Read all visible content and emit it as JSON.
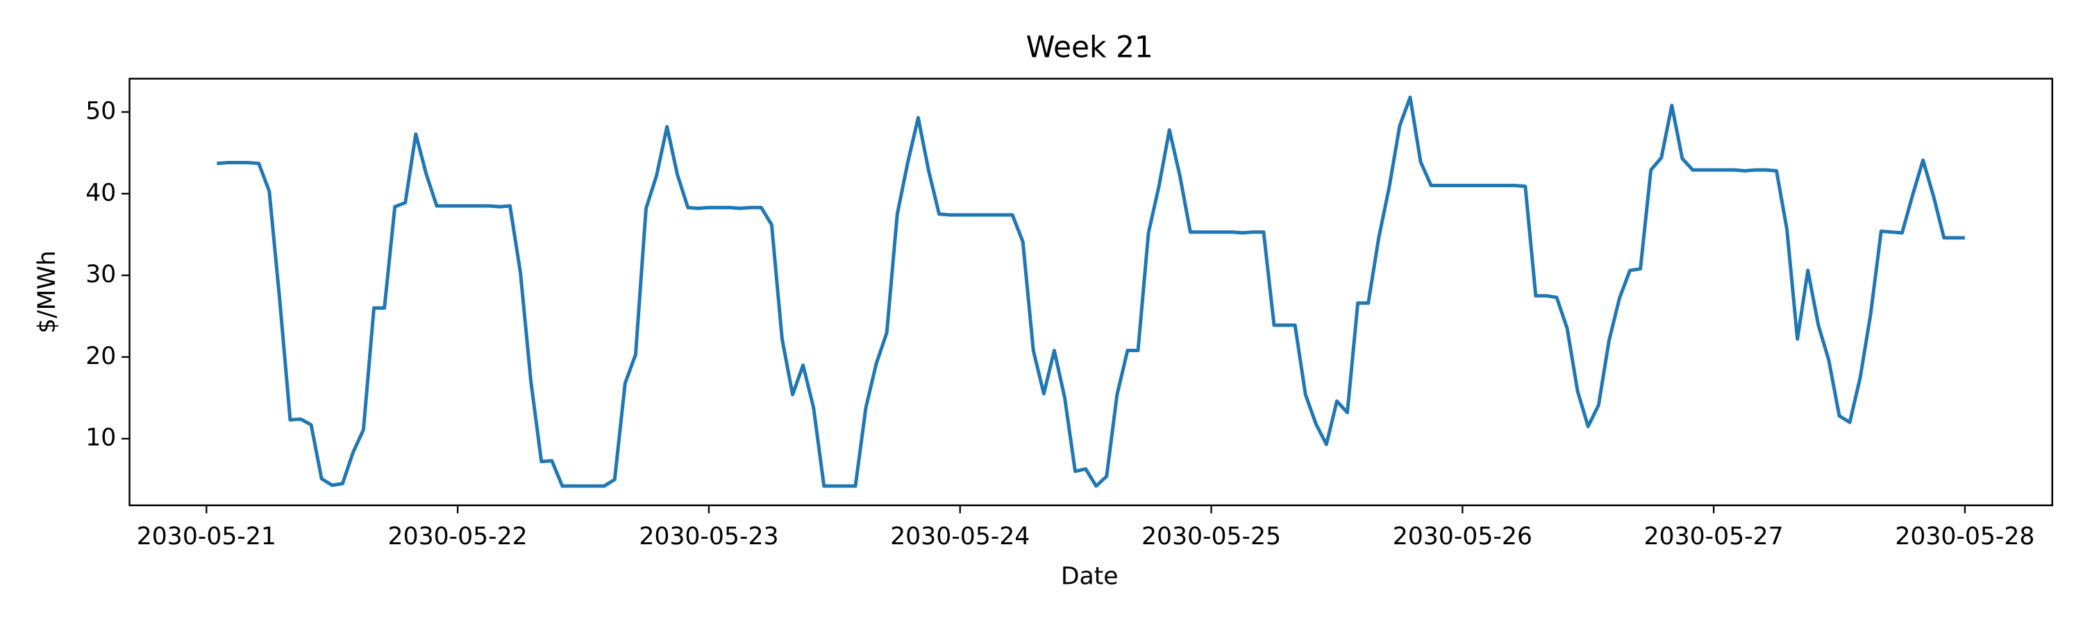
{
  "chart_data": {
    "type": "line",
    "title": "Week 21",
    "xlabel": "Date",
    "ylabel": "$/MWh",
    "x": [
      "2030-05-21T01:00",
      "2030-05-21T02:00",
      "2030-05-21T03:00",
      "2030-05-21T04:00",
      "2030-05-21T05:00",
      "2030-05-21T06:00",
      "2030-05-21T07:00",
      "2030-05-21T08:00",
      "2030-05-21T09:00",
      "2030-05-21T10:00",
      "2030-05-21T11:00",
      "2030-05-21T12:00",
      "2030-05-21T13:00",
      "2030-05-21T14:00",
      "2030-05-21T15:00",
      "2030-05-21T16:00",
      "2030-05-21T17:00",
      "2030-05-21T18:00",
      "2030-05-21T19:00",
      "2030-05-21T20:00",
      "2030-05-21T21:00",
      "2030-05-21T22:00",
      "2030-05-21T23:00",
      "2030-05-22T00:00",
      "2030-05-22T01:00",
      "2030-05-22T02:00",
      "2030-05-22T03:00",
      "2030-05-22T04:00",
      "2030-05-22T05:00",
      "2030-05-22T06:00",
      "2030-05-22T07:00",
      "2030-05-22T08:00",
      "2030-05-22T09:00",
      "2030-05-22T10:00",
      "2030-05-22T11:00",
      "2030-05-22T12:00",
      "2030-05-22T13:00",
      "2030-05-22T14:00",
      "2030-05-22T15:00",
      "2030-05-22T16:00",
      "2030-05-22T17:00",
      "2030-05-22T18:00",
      "2030-05-22T19:00",
      "2030-05-22T20:00",
      "2030-05-22T21:00",
      "2030-05-22T22:00",
      "2030-05-22T23:00",
      "2030-05-23T00:00",
      "2030-05-23T01:00",
      "2030-05-23T02:00",
      "2030-05-23T03:00",
      "2030-05-23T04:00",
      "2030-05-23T05:00",
      "2030-05-23T06:00",
      "2030-05-23T07:00",
      "2030-05-23T08:00",
      "2030-05-23T09:00",
      "2030-05-23T10:00",
      "2030-05-23T11:00",
      "2030-05-23T12:00",
      "2030-05-23T13:00",
      "2030-05-23T14:00",
      "2030-05-23T15:00",
      "2030-05-23T16:00",
      "2030-05-23T17:00",
      "2030-05-23T18:00",
      "2030-05-23T19:00",
      "2030-05-23T20:00",
      "2030-05-23T21:00",
      "2030-05-23T22:00",
      "2030-05-23T23:00",
      "2030-05-24T00:00",
      "2030-05-24T01:00",
      "2030-05-24T02:00",
      "2030-05-24T03:00",
      "2030-05-24T04:00",
      "2030-05-24T05:00",
      "2030-05-24T06:00",
      "2030-05-24T07:00",
      "2030-05-24T08:00",
      "2030-05-24T09:00",
      "2030-05-24T10:00",
      "2030-05-24T11:00",
      "2030-05-24T12:00",
      "2030-05-24T13:00",
      "2030-05-24T14:00",
      "2030-05-24T15:00",
      "2030-05-24T16:00",
      "2030-05-24T17:00",
      "2030-05-24T18:00",
      "2030-05-24T19:00",
      "2030-05-24T20:00",
      "2030-05-24T21:00",
      "2030-05-24T22:00",
      "2030-05-24T23:00",
      "2030-05-25T00:00",
      "2030-05-25T01:00",
      "2030-05-25T02:00",
      "2030-05-25T03:00",
      "2030-05-25T04:00",
      "2030-05-25T05:00",
      "2030-05-25T06:00",
      "2030-05-25T07:00",
      "2030-05-25T08:00",
      "2030-05-25T09:00",
      "2030-05-25T10:00",
      "2030-05-25T11:00",
      "2030-05-25T12:00",
      "2030-05-25T13:00",
      "2030-05-25T14:00",
      "2030-05-25T15:00",
      "2030-05-25T16:00",
      "2030-05-25T17:00",
      "2030-05-25T18:00",
      "2030-05-25T19:00",
      "2030-05-25T20:00",
      "2030-05-25T21:00",
      "2030-05-25T22:00",
      "2030-05-25T23:00",
      "2030-05-26T00:00",
      "2030-05-26T01:00",
      "2030-05-26T02:00",
      "2030-05-26T03:00",
      "2030-05-26T04:00",
      "2030-05-26T05:00",
      "2030-05-26T06:00",
      "2030-05-26T07:00",
      "2030-05-26T08:00",
      "2030-05-26T09:00",
      "2030-05-26T10:00",
      "2030-05-26T11:00",
      "2030-05-26T12:00",
      "2030-05-26T13:00",
      "2030-05-26T14:00",
      "2030-05-26T15:00",
      "2030-05-26T16:00",
      "2030-05-26T17:00",
      "2030-05-26T18:00",
      "2030-05-26T19:00",
      "2030-05-26T20:00",
      "2030-05-26T21:00",
      "2030-05-26T22:00",
      "2030-05-26T23:00",
      "2030-05-27T00:00",
      "2030-05-27T01:00",
      "2030-05-27T02:00",
      "2030-05-27T03:00",
      "2030-05-27T04:00",
      "2030-05-27T05:00",
      "2030-05-27T06:00",
      "2030-05-27T07:00",
      "2030-05-27T08:00",
      "2030-05-27T09:00",
      "2030-05-27T10:00",
      "2030-05-27T11:00",
      "2030-05-27T12:00",
      "2030-05-27T13:00",
      "2030-05-27T14:00",
      "2030-05-27T15:00",
      "2030-05-27T16:00",
      "2030-05-27T17:00",
      "2030-05-27T18:00",
      "2030-05-27T19:00",
      "2030-05-27T20:00",
      "2030-05-27T21:00",
      "2030-05-27T22:00",
      "2030-05-27T23:00",
      "2030-05-28T00:00"
    ],
    "series": [
      {
        "color": "#1f77b4",
        "values": [
          43.7,
          43.8,
          43.8,
          43.8,
          43.7,
          40.3,
          27,
          12.3,
          12.4,
          11.7,
          5.1,
          4.3,
          4.5,
          8.3,
          11.1,
          26,
          26,
          38.4,
          38.9,
          47.3,
          42.4,
          38.5,
          38.5,
          38.5,
          38.5,
          38.5,
          38.5,
          38.4,
          38.5,
          30.3,
          17,
          7.2,
          7.3,
          4.2,
          4.2,
          4.2,
          4.2,
          4.2,
          5,
          16.8,
          20.3,
          38.2,
          42.2,
          48.2,
          42.3,
          38.3,
          38.2,
          38.3,
          38.3,
          38.3,
          38.2,
          38.3,
          38.3,
          36.2,
          22.2,
          15.4,
          19,
          13.8,
          4.2,
          4.2,
          4.2,
          4.2,
          13.8,
          19.2,
          23,
          37.5,
          43.8,
          49.3,
          42.8,
          37.5,
          37.4,
          37.4,
          37.4,
          37.4,
          37.4,
          37.4,
          37.4,
          34.1,
          20.8,
          15.5,
          20.8,
          15,
          6,
          6.3,
          4.2,
          5.4,
          15.4,
          20.8,
          20.8,
          35.2,
          40.9,
          47.8,
          42.2,
          35.3,
          35.3,
          35.3,
          35.3,
          35.3,
          35.2,
          35.3,
          35.3,
          23.9,
          23.9,
          23.9,
          15.4,
          11.8,
          9.3,
          14.6,
          13.2,
          26.6,
          26.6,
          34.6,
          40.8,
          48.3,
          51.8,
          43.9,
          41,
          41,
          41,
          41,
          41,
          41,
          41,
          41,
          41,
          40.9,
          27.5,
          27.5,
          27.3,
          23.5,
          15.8,
          11.5,
          14.1,
          22,
          27.2,
          30.6,
          30.8,
          42.9,
          44.4,
          50.8,
          44.3,
          42.9,
          42.9,
          42.9,
          42.9,
          42.9,
          42.8,
          42.9,
          42.9,
          42.8,
          35.6,
          22.2,
          30.6,
          23.9,
          19.6,
          12.8,
          12,
          17.5,
          25.3,
          35.4,
          35.3,
          35.2,
          39.8,
          44.1,
          39.7,
          34.6,
          34.6,
          34.6
        ]
      }
    ],
    "xlim": [
      "2030-05-20T16:39",
      "2030-05-28T08:21"
    ],
    "xticks": [
      "2030-05-21",
      "2030-05-22",
      "2030-05-23",
      "2030-05-24",
      "2030-05-25",
      "2030-05-26",
      "2030-05-27",
      "2030-05-28"
    ],
    "ylim": [
      1.84,
      54.08
    ],
    "yticks": [
      10,
      20,
      30,
      40,
      50
    ],
    "grid": false
  }
}
